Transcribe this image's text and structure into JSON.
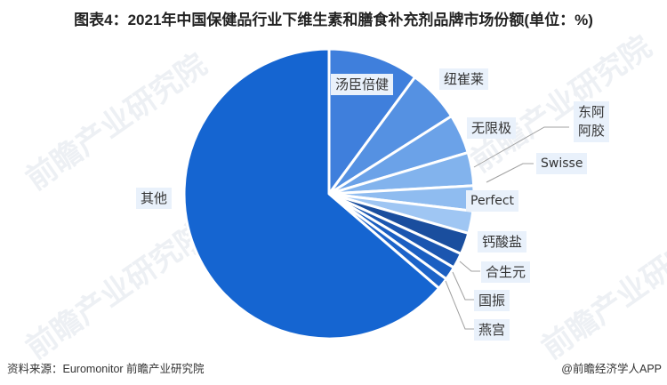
{
  "title": "图表4：2021年中国保健品行业下维生素和膳食补充剂品牌市场份额(单位：%)",
  "footer": {
    "source": "资料来源：Euromonitor 前瞻产业研究院",
    "credit": "@前瞻经济学人APP"
  },
  "watermark_text": "前瞻产业研究院",
  "colors": {
    "slices": [
      "#3f7fdc",
      "#5591e2",
      "#6ba2e8",
      "#82b3ed",
      "#8fbcf0",
      "#9fc6f3",
      "#1a4e9e",
      "#1b56b0",
      "#1b5fc2",
      "#1c63c9",
      "#1565d1"
    ],
    "label_bg": "#e9f1fb",
    "leader": "#a0a0a0"
  },
  "chart_data": {
    "type": "pie",
    "title": "2021年中国保健品行业下维生素和膳食补充剂品牌市场份额(单位：%)",
    "start_angle": "12 o'clock, clockwise",
    "categories": [
      "汤臣倍健",
      "纽崔莱",
      "无限极",
      "东阿阿胶",
      "Swisse",
      "Perfect",
      "钙酸盐",
      "合生元",
      "国振",
      "燕宫",
      "其他"
    ],
    "values": [
      10.1,
      5.9,
      4.4,
      3.7,
      2.8,
      2.5,
      2.4,
      1.7,
      1.5,
      1.3,
      63.7
    ],
    "unit": "%",
    "data_labels_shown": false
  },
  "labels": {
    "tangchen": "汤臣倍健",
    "nutrilite": "纽崔莱",
    "infinitus": "无限极",
    "dongee_line1": "东阿",
    "dongee_line2": "阿胶",
    "swisse": "Swisse",
    "perfect": "Perfect",
    "calcium": "钙酸盐",
    "biostime": "合生元",
    "guozhen": "国振",
    "yangong": "燕宫",
    "others": "其他"
  }
}
